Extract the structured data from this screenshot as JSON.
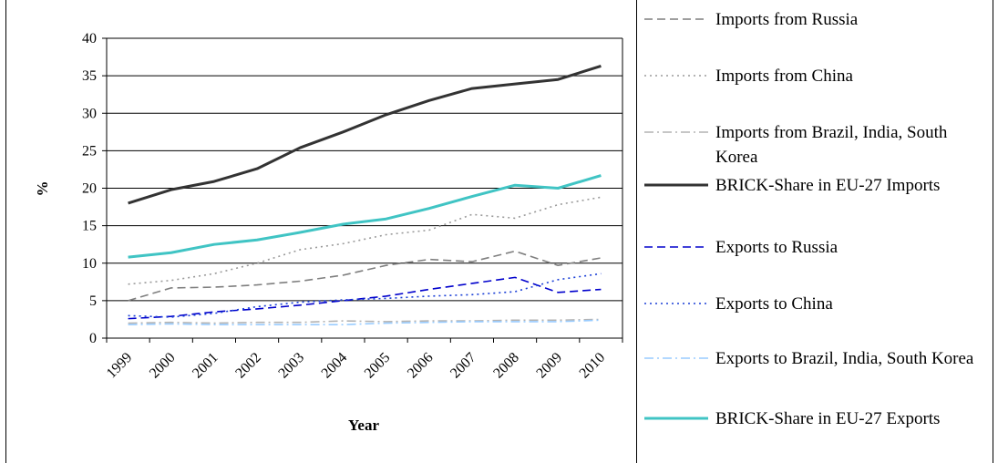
{
  "chart_data": {
    "type": "line",
    "xlabel": "Year",
    "ylabel": "%",
    "ylim": [
      0,
      40
    ],
    "y_ticks": [
      "0",
      "5",
      "10",
      "15",
      "20",
      "25",
      "30",
      "35",
      "40"
    ],
    "categories": [
      "1999",
      "2000",
      "2001",
      "2002",
      "2003",
      "2004",
      "2005",
      "2006",
      "2007",
      "2008",
      "2009",
      "2010"
    ],
    "grid": "horizontal",
    "legend_position": "right",
    "series": [
      {
        "name": "Imports from Russia",
        "color": "#7f7f7f",
        "style": "dashed",
        "values": [
          5.0,
          6.7,
          6.8,
          7.1,
          7.6,
          8.4,
          9.7,
          10.5,
          10.2,
          11.6,
          9.7,
          10.7
        ]
      },
      {
        "name": "Imports from China",
        "color": "#9a9a9a",
        "style": "dotted",
        "values": [
          7.2,
          7.7,
          8.6,
          10.0,
          11.8,
          12.6,
          13.8,
          14.4,
          16.5,
          16.0,
          17.8,
          18.8
        ]
      },
      {
        "name": "Imports from Brazil, India, South Korea",
        "color": "#b3b3b3",
        "style": "dashdot",
        "values": [
          2.0,
          2.1,
          2.0,
          2.1,
          2.1,
          2.3,
          2.2,
          2.3,
          2.3,
          2.4,
          2.4,
          2.5
        ]
      },
      {
        "name": "BRICK-Share in EU-27 Imports",
        "color": "#333333",
        "style": "solid",
        "values": [
          18.0,
          19.8,
          20.9,
          22.6,
          25.4,
          27.5,
          29.8,
          31.7,
          33.3,
          33.9,
          34.5,
          36.3
        ]
      },
      {
        "name": "Exports to Russia",
        "color": "#0000cc",
        "style": "dashed",
        "values": [
          2.6,
          2.9,
          3.5,
          3.9,
          4.4,
          5.0,
          5.6,
          6.5,
          7.3,
          8.1,
          6.1,
          6.5
        ]
      },
      {
        "name": "Exports to China",
        "color": "#1a3fd6",
        "style": "dotted",
        "values": [
          3.0,
          2.8,
          3.3,
          4.2,
          4.8,
          5.1,
          5.3,
          5.6,
          5.8,
          6.2,
          7.8,
          8.6
        ]
      },
      {
        "name": "Exports to Brazil, India, South Korea",
        "color": "#99ccff",
        "style": "dashdot",
        "values": [
          1.8,
          1.9,
          1.8,
          1.8,
          1.8,
          1.8,
          2.0,
          2.1,
          2.2,
          2.2,
          2.2,
          2.4
        ]
      },
      {
        "name": "BRICK-Share in EU-27 Exports",
        "color": "#40c4c4",
        "style": "solid",
        "values": [
          10.8,
          11.4,
          12.5,
          13.1,
          14.1,
          15.2,
          15.9,
          17.3,
          18.9,
          20.4,
          20.0,
          21.7
        ]
      }
    ]
  }
}
